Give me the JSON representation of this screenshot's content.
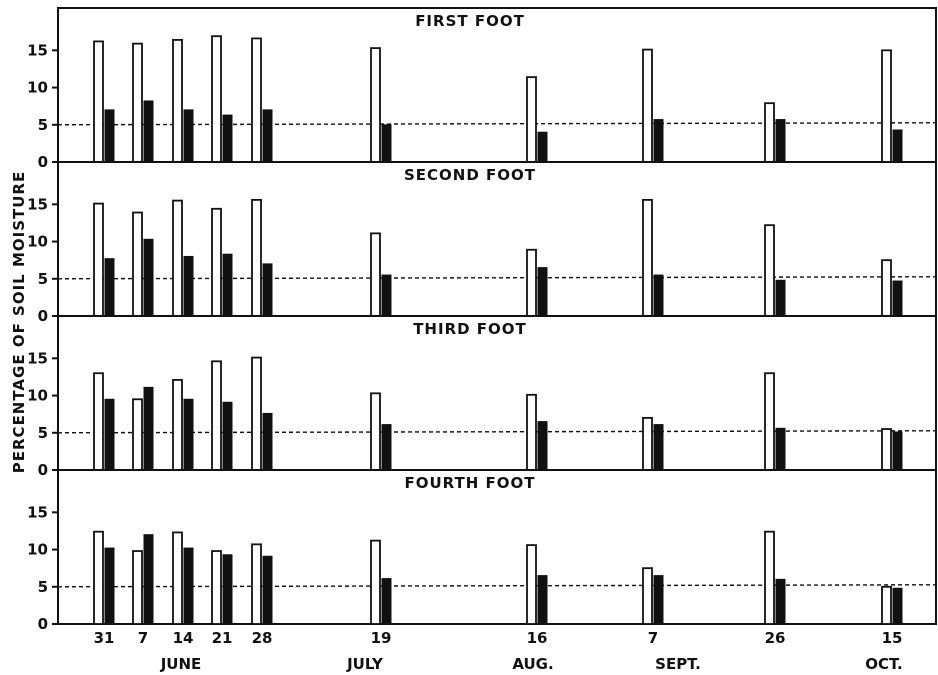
{
  "chart_data": {
    "type": "bar",
    "ylabel": "PERCENTAGE OF SOIL MOISTURE",
    "y_ticks": [
      0,
      5,
      10,
      15
    ],
    "ylim": [
      0,
      18
    ],
    "reference_line": 5,
    "dates": [
      "31",
      "7",
      "14",
      "21",
      "28",
      "19",
      "16",
      "7",
      "26",
      "15"
    ],
    "months": [
      {
        "label": "JUNE"
      },
      {
        "label": "JULY"
      },
      {
        "label": "AUG."
      },
      {
        "label": "SEPT."
      },
      {
        "label": "OCT."
      }
    ],
    "panels": [
      {
        "title": "FIRST FOOT",
        "open": [
          16.2,
          15.9,
          16.4,
          16.9,
          16.6,
          15.3,
          11.4,
          15.1,
          7.9,
          15.0
        ],
        "solid": [
          7.0,
          8.2,
          7.0,
          6.3,
          7.0,
          5.0,
          4.0,
          5.7,
          5.7,
          4.3
        ]
      },
      {
        "title": "SECOND FOOT",
        "open": [
          15.1,
          13.9,
          15.5,
          14.4,
          15.6,
          11.1,
          8.9,
          15.6,
          12.2,
          7.5
        ],
        "solid": [
          7.7,
          10.3,
          8.0,
          8.3,
          7.0,
          5.5,
          6.5,
          5.5,
          4.8,
          4.7
        ]
      },
      {
        "title": "THIRD FOOT",
        "open": [
          13.0,
          9.5,
          12.1,
          14.6,
          15.1,
          10.3,
          10.1,
          7.0,
          13.0,
          5.5
        ],
        "solid": [
          9.5,
          11.1,
          9.5,
          9.1,
          7.6,
          6.1,
          6.5,
          6.1,
          5.6,
          5.1
        ]
      },
      {
        "title": "FOURTH FOOT",
        "open": [
          12.4,
          9.8,
          12.3,
          9.8,
          10.7,
          11.2,
          10.6,
          7.5,
          12.4,
          5.0
        ],
        "solid": [
          10.2,
          12.0,
          10.2,
          9.3,
          9.1,
          6.1,
          6.5,
          6.5,
          6.0,
          4.8
        ]
      }
    ]
  }
}
